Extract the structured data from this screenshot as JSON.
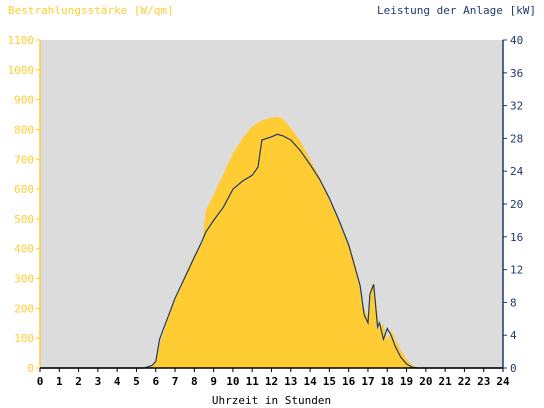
{
  "chart_data": {
    "type": "area",
    "y_left_label": "Bestrahlungsstärke [W/qm]",
    "y_right_label": "Leistung der Anlage [kW]",
    "xlabel": "Uhrzeit in Stunden",
    "xlim": [
      0,
      24
    ],
    "ylim_left": [
      0,
      1100
    ],
    "ylim_right": [
      0,
      40
    ],
    "x_ticks": [
      "0",
      "1",
      "2",
      "3",
      "4",
      "5",
      "6",
      "7",
      "8",
      "9",
      "10",
      "11",
      "12",
      "13",
      "14",
      "15",
      "16",
      "17",
      "18",
      "19",
      "20",
      "21",
      "22",
      "23",
      "24"
    ],
    "y_left_ticks": [
      "0",
      "100",
      "200",
      "300",
      "400",
      "500",
      "600",
      "700",
      "800",
      "900",
      "1000",
      "1100"
    ],
    "y_right_ticks": [
      "0",
      "4",
      "8",
      "12",
      "16",
      "20",
      "24",
      "28",
      "32",
      "36",
      "40"
    ],
    "grid": false,
    "colors": {
      "plot_bg": "#dcdcdc",
      "irradiance_fill": "#ffcc33",
      "power_line": "#1f3a6b",
      "left_axis": "#ffcc33",
      "right_axis": "#1f3a6b",
      "x_axis": "#000000"
    },
    "series": [
      {
        "axis": "left",
        "style": "area",
        "x": [
          0,
          5.4,
          5.8,
          6.0,
          6.2,
          6.4,
          6.6,
          7.0,
          7.5,
          8.0,
          8.4,
          8.5,
          8.6,
          9.0,
          9.5,
          10.0,
          10.5,
          11.0,
          11.5,
          12.0,
          12.3,
          12.6,
          13.0,
          13.5,
          14.0,
          14.5,
          15.0,
          15.5,
          16.0,
          16.3,
          16.6,
          16.8,
          17.0,
          17.1,
          17.3,
          17.5,
          17.6,
          17.8,
          18.0,
          18.2,
          18.4,
          18.7,
          19.0,
          19.3,
          19.6,
          20.0,
          24
        ],
        "y": [
          0,
          0,
          10,
          20,
          80,
          120,
          160,
          230,
          310,
          380,
          420,
          470,
          530,
          580,
          650,
          720,
          770,
          810,
          830,
          840,
          842,
          835,
          805,
          760,
          700,
          640,
          570,
          500,
          420,
          360,
          280,
          200,
          170,
          260,
          290,
          180,
          130,
          150,
          90,
          130,
          100,
          60,
          30,
          10,
          2,
          0,
          0
        ]
      },
      {
        "axis": "right",
        "style": "line",
        "x": [
          0,
          5.4,
          5.8,
          6.0,
          6.2,
          6.4,
          6.6,
          7.0,
          7.5,
          8.0,
          8.4,
          8.6,
          9.0,
          9.5,
          10.0,
          10.5,
          11.0,
          11.3,
          11.5,
          12.0,
          12.3,
          12.6,
          13.0,
          13.5,
          14.0,
          14.5,
          15.0,
          15.5,
          16.0,
          16.3,
          16.6,
          16.8,
          17.0,
          17.1,
          17.3,
          17.5,
          17.6,
          17.8,
          18.0,
          18.2,
          18.4,
          18.7,
          19.0,
          19.3,
          19.6,
          20.0,
          24
        ],
        "y": [
          0,
          0,
          0.3,
          0.8,
          3.5,
          4.8,
          6.0,
          8.5,
          11.0,
          13.5,
          15.5,
          16.6,
          18.0,
          19.6,
          21.8,
          22.8,
          23.5,
          24.5,
          27.8,
          28.2,
          28.5,
          28.3,
          27.8,
          26.5,
          24.8,
          23.0,
          20.7,
          18.0,
          15.0,
          12.5,
          10.0,
          6.5,
          5.5,
          9.0,
          10.2,
          5.0,
          5.5,
          3.5,
          4.8,
          4.0,
          2.7,
          1.3,
          0.5,
          0.1,
          0,
          0,
          0
        ]
      }
    ]
  }
}
